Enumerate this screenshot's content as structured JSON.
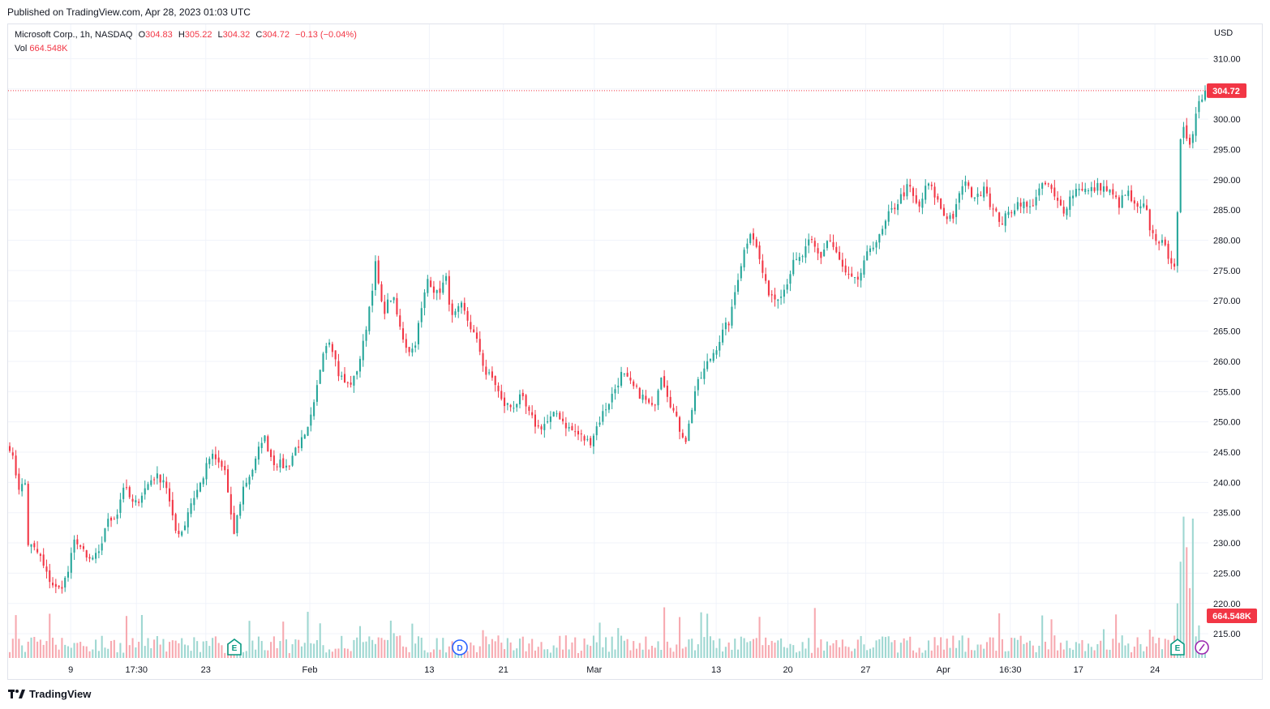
{
  "header": {
    "published": "Published on TradingView.com, Apr 28, 2023 01:03 UTC"
  },
  "legend": {
    "symbol": "Microsoft Corp., 1h, NASDAQ",
    "o_label": "O",
    "o_value": "304.83",
    "h_label": "H",
    "h_value": "305.22",
    "l_label": "L",
    "l_value": "304.32",
    "c_label": "C",
    "c_value": "304.72",
    "change": "−0.13 (−0.04%)",
    "vol_label": "Vol",
    "vol_value": "664.548K"
  },
  "price_axis": {
    "currency": "USD",
    "last_price_badge": "304.72",
    "last_volume_badge": "664.548K"
  },
  "brand": {
    "name": "TradingView"
  },
  "colors": {
    "up": "#26a69a",
    "down": "#f23645",
    "up_volume": "#9ed7d1",
    "down_volume": "#f7a9b0",
    "grid": "#f0f3fa",
    "text": "#131722",
    "earnings_marker": "#089981",
    "dividend_marker": "#2962ff",
    "split_marker": "#9c27b0"
  },
  "markers": [
    {
      "label": "E",
      "kind": "earnings",
      "x_label": "Jan 24"
    },
    {
      "label": "D",
      "kind": "dividend",
      "x_label": "Feb 15"
    },
    {
      "label": "E",
      "kind": "earnings",
      "x_label": "Apr 25"
    },
    {
      "label": "",
      "kind": "split",
      "x_label": "Apr 27"
    }
  ],
  "chart_data": {
    "type": "candlestick",
    "interval": "1h",
    "symbol": "MSFT",
    "y_axis": {
      "min": 211,
      "max": 313,
      "ticks": [
        215,
        220,
        225,
        230,
        235,
        240,
        245,
        250,
        255,
        260,
        265,
        270,
        275,
        280,
        285,
        290,
        295,
        300,
        305,
        310
      ],
      "tick_labels": [
        "215.00",
        "220.00",
        "225.00",
        "230.00",
        "235.00",
        "240.00",
        "245.00",
        "250.00",
        "255.00",
        "260.00",
        "265.00",
        "270.00",
        "275.00",
        "280.00",
        "285.00",
        "290.00",
        "295.00",
        "300.00",
        "",
        "310.00"
      ]
    },
    "x_axis": {
      "tick_labels": [
        "9",
        "17:30",
        "23",
        "Feb",
        "13",
        "21",
        "Mar",
        "13",
        "20",
        "27",
        "Apr",
        "16:30",
        "17",
        "24"
      ],
      "tick_positions_fraction": [
        0.051,
        0.106,
        0.164,
        0.251,
        0.351,
        0.413,
        0.489,
        0.591,
        0.651,
        0.716,
        0.781,
        0.837,
        0.894,
        0.958
      ]
    },
    "grid": true,
    "last_price": 304.72,
    "last_volume": "664.548K",
    "anchors": [
      {
        "t": 0.0,
        "p": 246.0
      },
      {
        "t": 0.008,
        "p": 239.0
      },
      {
        "t": 0.014,
        "p": 240.0
      },
      {
        "t": 0.015,
        "p": 230.0
      },
      {
        "t": 0.025,
        "p": 228.0
      },
      {
        "t": 0.03,
        "p": 225.0
      },
      {
        "t": 0.04,
        "p": 222.0
      },
      {
        "t": 0.048,
        "p": 224.5
      },
      {
        "t": 0.055,
        "p": 231.0
      },
      {
        "t": 0.065,
        "p": 227.0
      },
      {
        "t": 0.075,
        "p": 228.0
      },
      {
        "t": 0.08,
        "p": 233.0
      },
      {
        "t": 0.09,
        "p": 235.0
      },
      {
        "t": 0.095,
        "p": 239.5
      },
      {
        "t": 0.104,
        "p": 236.0
      },
      {
        "t": 0.11,
        "p": 238.0
      },
      {
        "t": 0.12,
        "p": 241.0
      },
      {
        "t": 0.13,
        "p": 240.5
      },
      {
        "t": 0.138,
        "p": 232.0
      },
      {
        "t": 0.145,
        "p": 232.0
      },
      {
        "t": 0.15,
        "p": 236.0
      },
      {
        "t": 0.16,
        "p": 240.0
      },
      {
        "t": 0.168,
        "p": 244.5
      },
      {
        "t": 0.18,
        "p": 242.0
      },
      {
        "t": 0.187,
        "p": 231.0
      },
      {
        "t": 0.195,
        "p": 239.0
      },
      {
        "t": 0.205,
        "p": 243.0
      },
      {
        "t": 0.212,
        "p": 248.0
      },
      {
        "t": 0.22,
        "p": 243.5
      },
      {
        "t": 0.232,
        "p": 242.5
      },
      {
        "t": 0.24,
        "p": 246.0
      },
      {
        "t": 0.248,
        "p": 247.5
      },
      {
        "t": 0.255,
        "p": 253.0
      },
      {
        "t": 0.262,
        "p": 262.0
      },
      {
        "t": 0.268,
        "p": 264.0
      },
      {
        "t": 0.275,
        "p": 258.0
      },
      {
        "t": 0.282,
        "p": 256.0
      },
      {
        "t": 0.288,
        "p": 257.0
      },
      {
        "t": 0.295,
        "p": 262.0
      },
      {
        "t": 0.3,
        "p": 268.0
      },
      {
        "t": 0.306,
        "p": 276.0
      },
      {
        "t": 0.312,
        "p": 268.0
      },
      {
        "t": 0.32,
        "p": 271.0
      },
      {
        "t": 0.327,
        "p": 265.0
      },
      {
        "t": 0.333,
        "p": 262.0
      },
      {
        "t": 0.338,
        "p": 262.0
      },
      {
        "t": 0.345,
        "p": 269.0
      },
      {
        "t": 0.35,
        "p": 274.0
      },
      {
        "t": 0.357,
        "p": 271.0
      },
      {
        "t": 0.365,
        "p": 273.5
      },
      {
        "t": 0.37,
        "p": 267.0
      },
      {
        "t": 0.378,
        "p": 269.0
      },
      {
        "t": 0.385,
        "p": 266.0
      },
      {
        "t": 0.393,
        "p": 262.0
      },
      {
        "t": 0.398,
        "p": 258.0
      },
      {
        "t": 0.405,
        "p": 257.0
      },
      {
        "t": 0.412,
        "p": 253.0
      },
      {
        "t": 0.42,
        "p": 252.5
      },
      {
        "t": 0.428,
        "p": 254.0
      },
      {
        "t": 0.435,
        "p": 251.0
      },
      {
        "t": 0.442,
        "p": 249.0
      },
      {
        "t": 0.45,
        "p": 250.0
      },
      {
        "t": 0.458,
        "p": 251.5
      },
      {
        "t": 0.467,
        "p": 249.0
      },
      {
        "t": 0.475,
        "p": 248.0
      },
      {
        "t": 0.485,
        "p": 246.5
      },
      {
        "t": 0.495,
        "p": 251.0
      },
      {
        "t": 0.503,
        "p": 254.0
      },
      {
        "t": 0.512,
        "p": 258.0
      },
      {
        "t": 0.52,
        "p": 256.0
      },
      {
        "t": 0.53,
        "p": 254.0
      },
      {
        "t": 0.538,
        "p": 252.0
      },
      {
        "t": 0.545,
        "p": 258.0
      },
      {
        "t": 0.553,
        "p": 253.0
      },
      {
        "t": 0.56,
        "p": 249.0
      },
      {
        "t": 0.566,
        "p": 247.0
      },
      {
        "t": 0.573,
        "p": 255.0
      },
      {
        "t": 0.582,
        "p": 259.0
      },
      {
        "t": 0.59,
        "p": 262.0
      },
      {
        "t": 0.597,
        "p": 265.0
      },
      {
        "t": 0.603,
        "p": 267.0
      },
      {
        "t": 0.608,
        "p": 273.0
      },
      {
        "t": 0.614,
        "p": 278.0
      },
      {
        "t": 0.62,
        "p": 282.0
      },
      {
        "t": 0.627,
        "p": 277.0
      },
      {
        "t": 0.633,
        "p": 272.0
      },
      {
        "t": 0.64,
        "p": 270.5
      },
      {
        "t": 0.648,
        "p": 272.0
      },
      {
        "t": 0.655,
        "p": 276.0
      },
      {
        "t": 0.662,
        "p": 277.0
      },
      {
        "t": 0.67,
        "p": 280.0
      },
      {
        "t": 0.678,
        "p": 277.0
      },
      {
        "t": 0.685,
        "p": 280.5
      },
      {
        "t": 0.693,
        "p": 277.0
      },
      {
        "t": 0.7,
        "p": 274.0
      },
      {
        "t": 0.708,
        "p": 273.0
      },
      {
        "t": 0.713,
        "p": 275.0
      },
      {
        "t": 0.72,
        "p": 279.0
      },
      {
        "t": 0.728,
        "p": 280.5
      },
      {
        "t": 0.735,
        "p": 284.0
      },
      {
        "t": 0.745,
        "p": 287.0
      },
      {
        "t": 0.752,
        "p": 289.0
      },
      {
        "t": 0.76,
        "p": 285.0
      },
      {
        "t": 0.768,
        "p": 289.5
      },
      {
        "t": 0.775,
        "p": 287.0
      },
      {
        "t": 0.782,
        "p": 284.0
      },
      {
        "t": 0.79,
        "p": 284.0
      },
      {
        "t": 0.798,
        "p": 290.0
      },
      {
        "t": 0.803,
        "p": 288.0
      },
      {
        "t": 0.81,
        "p": 287.0
      },
      {
        "t": 0.815,
        "p": 289.5
      },
      {
        "t": 0.822,
        "p": 285.0
      },
      {
        "t": 0.83,
        "p": 283.0
      },
      {
        "t": 0.838,
        "p": 285.0
      },
      {
        "t": 0.845,
        "p": 286.5
      },
      {
        "t": 0.853,
        "p": 285.0
      },
      {
        "t": 0.86,
        "p": 288.0
      },
      {
        "t": 0.868,
        "p": 289.5
      },
      {
        "t": 0.875,
        "p": 286.5
      },
      {
        "t": 0.882,
        "p": 285.0
      },
      {
        "t": 0.888,
        "p": 287.5
      },
      {
        "t": 0.895,
        "p": 289.0
      },
      {
        "t": 0.902,
        "p": 288.0
      },
      {
        "t": 0.912,
        "p": 289.0
      },
      {
        "t": 0.92,
        "p": 288.0
      },
      {
        "t": 0.928,
        "p": 286.0
      },
      {
        "t": 0.935,
        "p": 288.0
      },
      {
        "t": 0.942,
        "p": 285.0
      },
      {
        "t": 0.95,
        "p": 285.5
      },
      {
        "t": 0.955,
        "p": 281.0
      },
      {
        "t": 0.962,
        "p": 280.0
      },
      {
        "t": 0.968,
        "p": 278.0
      },
      {
        "t": 0.976,
        "p": 275.5
      },
      {
        "t": 0.978,
        "p": 295.0
      },
      {
        "t": 0.982,
        "p": 298.0
      },
      {
        "t": 0.988,
        "p": 296.0
      },
      {
        "t": 0.991,
        "p": 300.0
      },
      {
        "t": 0.995,
        "p": 303.0
      },
      {
        "t": 1.0,
        "p": 304.72
      }
    ]
  }
}
